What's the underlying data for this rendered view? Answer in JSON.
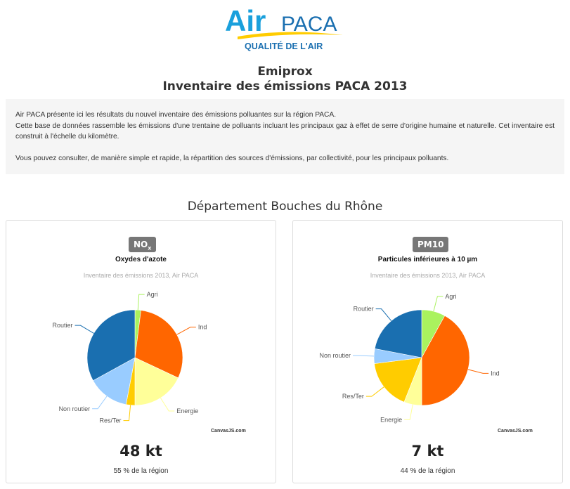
{
  "header": {
    "logo_text_air": "Air",
    "logo_text_paca": "PACA",
    "logo_tagline": "QUALITÉ DE L'AIR",
    "title_line1": "Emiprox",
    "title_line2": "Inventaire des émissions PACA 2013"
  },
  "intro": {
    "p1": "Air PACA présente ici les résultats du nouvel inventaire des émissions polluantes sur la région PACA.",
    "p2": "Cette base de données rassemble les émissions d'une trentaine de polluants incluant les principaux gaz à effet de serre d'origine humaine et naturelle. Cet inventaire est construit à l'échelle du kilomètre.",
    "p3": "Vous pouvez consulter, de manière simple et rapide, la répartition des sources d'émissions, par collectivité, pour les principaux polluants."
  },
  "department_title": "Département Bouches du Rhône",
  "colors": {
    "Agri": "#aaf25e",
    "Ind": "#ff6600",
    "Energie": "#ffff99",
    "Res/Ter": "#ffcc00",
    "Non routier": "#99ccff",
    "Routier": "#1a6fb0"
  },
  "chart_data": [
    {
      "type": "pie",
      "badge": "NO",
      "badge_sub": "x",
      "title": "Oxydes d'azote",
      "subtitle": "Inventaire des émissions 2013, Air PACA",
      "credit": "CanvasJS.com",
      "total": "48 kt",
      "share": "55 % de la région",
      "slices": [
        {
          "label": "Agri",
          "value": 2
        },
        {
          "label": "Ind",
          "value": 30
        },
        {
          "label": "Energie",
          "value": 18
        },
        {
          "label": "Res/Ter",
          "value": 3
        },
        {
          "label": "Non routier",
          "value": 14
        },
        {
          "label": "Routier",
          "value": 33
        }
      ]
    },
    {
      "type": "pie",
      "badge": "PM10",
      "badge_sub": "",
      "title": "Particules inférieures à 10 µm",
      "subtitle": "Inventaire des émissions 2013, Air PACA",
      "credit": "CanvasJS.com",
      "total": "7 kt",
      "share": "44 % de la région",
      "slices": [
        {
          "label": "Agri",
          "value": 8
        },
        {
          "label": "Ind",
          "value": 42
        },
        {
          "label": "Energie",
          "value": 6
        },
        {
          "label": "Res/Ter",
          "value": 17
        },
        {
          "label": "Non routier",
          "value": 5
        },
        {
          "label": "Routier",
          "value": 22
        }
      ]
    }
  ]
}
